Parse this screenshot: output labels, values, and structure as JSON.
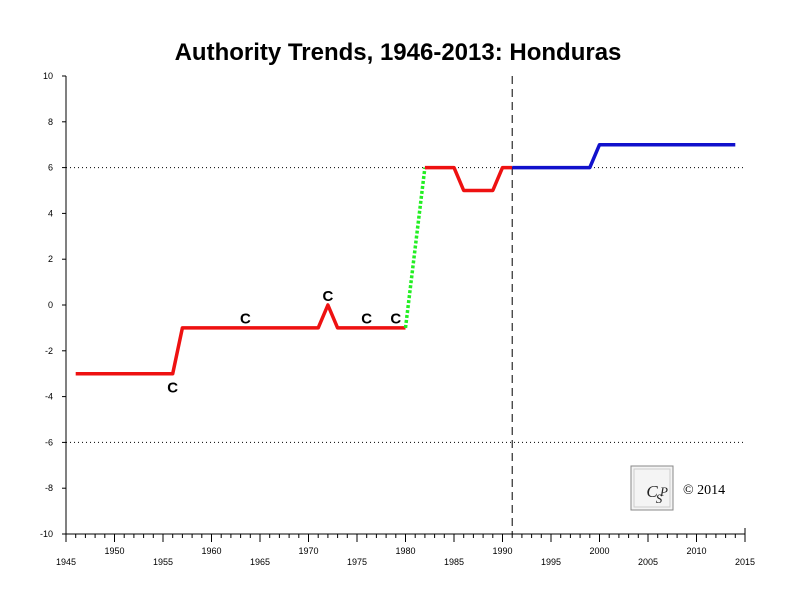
{
  "chart_data": {
    "type": "line",
    "title": "Authority Trends, 1946-2013: Honduras",
    "xlabel": "",
    "ylabel": "",
    "xlim": [
      1945,
      2015
    ],
    "ylim": [
      -10,
      10
    ],
    "x_ticks": [
      1945,
      1950,
      1955,
      1960,
      1965,
      1970,
      1975,
      1980,
      1985,
      1990,
      1995,
      2000,
      2005,
      2010,
      2015
    ],
    "y_ticks": [
      10,
      8,
      6,
      4,
      2,
      0,
      -2,
      -4,
      -6,
      -8,
      -10
    ],
    "reference_lines": [
      {
        "axis": "y",
        "value": 6,
        "style": "dotted"
      },
      {
        "axis": "y",
        "value": -6,
        "style": "dotted"
      },
      {
        "axis": "x",
        "value": 1991,
        "style": "dashed"
      }
    ],
    "grid": false,
    "legend": "none",
    "series": [
      {
        "color": "#ee1111",
        "style": "solid",
        "points": [
          [
            1946,
            -3
          ],
          [
            1956,
            -3
          ],
          [
            1957,
            -1
          ],
          [
            1971,
            -1
          ],
          [
            1972,
            0
          ],
          [
            1973,
            -1
          ],
          [
            1980,
            -1
          ]
        ]
      },
      {
        "color": "#22ee22",
        "style": "dotted",
        "points": [
          [
            1980,
            -1
          ],
          [
            1982,
            6
          ]
        ]
      },
      {
        "color": "#ee1111",
        "style": "solid",
        "points": [
          [
            1982,
            6
          ],
          [
            1985,
            6
          ],
          [
            1986,
            5
          ],
          [
            1989,
            5
          ],
          [
            1990,
            6
          ],
          [
            1991,
            6
          ]
        ]
      },
      {
        "color": "#1111cc",
        "style": "solid",
        "points": [
          [
            1991,
            6
          ],
          [
            1999,
            6
          ],
          [
            2000,
            7
          ],
          [
            2014,
            7
          ]
        ]
      }
    ],
    "annotations": [
      {
        "text": "C",
        "x": 1956,
        "y": -3.6
      },
      {
        "text": "C",
        "x": 1963.5,
        "y": -0.6
      },
      {
        "text": "C",
        "x": 1972,
        "y": 0.4
      },
      {
        "text": "C",
        "x": 1976,
        "y": -0.6
      },
      {
        "text": "C",
        "x": 1979,
        "y": -0.6
      }
    ]
  },
  "logo": {
    "text": "CSP"
  },
  "copyright": "© 2014"
}
